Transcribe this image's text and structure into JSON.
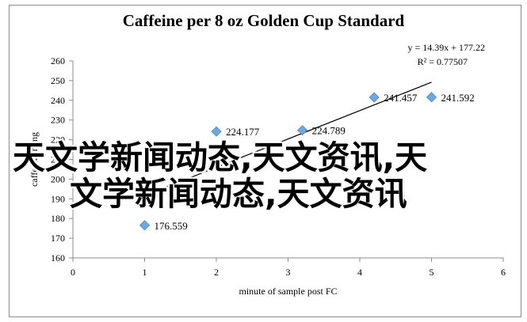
{
  "chart_data": {
    "type": "scatter",
    "title": "Caffeine per 8 oz Golden Cup Standard",
    "xlabel": "minute of sample post FC",
    "ylabel": "caffeine in mg",
    "xlim": [
      0,
      6
    ],
    "ylim": [
      160,
      260
    ],
    "xticks": [
      "0",
      "1",
      "2",
      "3",
      "4",
      "5",
      "6"
    ],
    "yticks": [
      "160",
      "170",
      "180",
      "190",
      "200",
      "210",
      "220",
      "230",
      "240",
      "250",
      "260"
    ],
    "points": [
      {
        "x": 1,
        "y": 176.559,
        "label": "176.559"
      },
      {
        "x": 2,
        "y": 224.177,
        "label": "224.177"
      },
      {
        "x": 3.2,
        "y": 224.789,
        "label": "224.789"
      },
      {
        "x": 4.2,
        "y": 241.457,
        "label": "241.457"
      },
      {
        "x": 5,
        "y": 241.592,
        "label": "241.592"
      }
    ],
    "trendline": {
      "slope": 14.39,
      "intercept": 177.22,
      "x_range": [
        1,
        5
      ]
    },
    "equation": "y = 14.39x + 177.22",
    "r_squared": "R² = 0.77507",
    "marker_color": "#6fa8dc",
    "line_color": "#000000",
    "grid": false
  },
  "watermark": {
    "line1": "天文学新闻动态,天文资讯,天",
    "line2": "文学新闻动态,天文资讯"
  }
}
